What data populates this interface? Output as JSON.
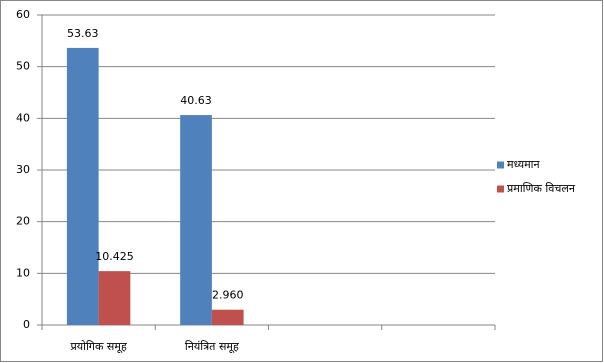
{
  "chart_data": {
    "type": "bar",
    "categories": [
      "प्रयोगिक समूह",
      "नियंत्रित समूह",
      null,
      null
    ],
    "series": [
      {
        "name": "मध्यमान",
        "color": "#4f81bd",
        "values": [
          53.63,
          40.63,
          null,
          null
        ]
      },
      {
        "name": "प्रमाणिक विचलन",
        "color": "#c0504d",
        "values": [
          10.425,
          2.96,
          null,
          null
        ],
        "value_labels": [
          "10.425",
          "2.960",
          null,
          null
        ]
      }
    ],
    "ylim": [
      0,
      60
    ],
    "yticks": [
      0,
      10,
      20,
      30,
      40,
      50,
      60
    ],
    "grid": true,
    "legend": "right"
  }
}
